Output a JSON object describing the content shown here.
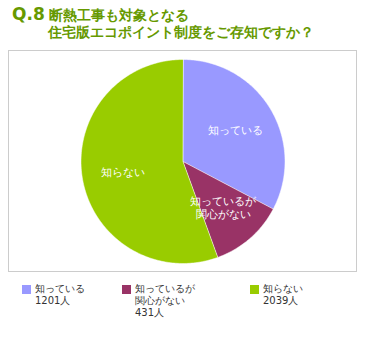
{
  "chart_data": {
    "type": "pie",
    "title": "Q.8 断熱工事も対象となる\n住宅版エコポイント制度をご存知ですか？",
    "categories": [
      "知っている",
      "知っているが\n関心がない",
      "知らない"
    ],
    "values": [
      1201,
      431,
      2039
    ],
    "value_labels": [
      "1201人",
      "431人",
      "2039人"
    ],
    "colors": [
      "#9999ff",
      "#993366",
      "#99cc00"
    ],
    "legend": "bottom"
  }
}
